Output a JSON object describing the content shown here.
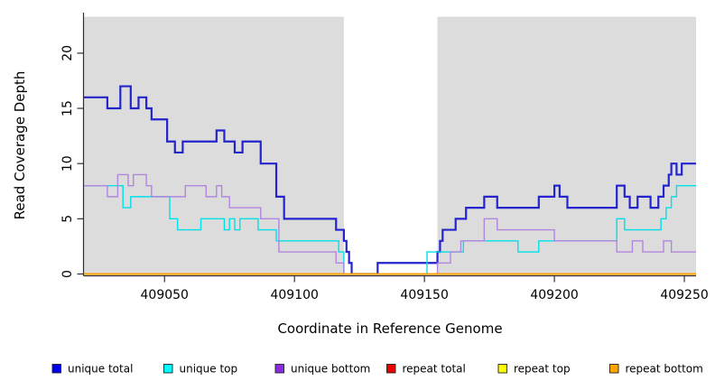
{
  "chart_data": {
    "type": "line",
    "subtype": "step",
    "title": "",
    "xlabel": "Coordinate in Reference Genome",
    "ylabel": "Read Coverage Depth",
    "xlim": [
      409019,
      409254.5
    ],
    "ylim": [
      0,
      23.3
    ],
    "x_ticks": [
      409050,
      409100,
      409150,
      409200,
      409250
    ],
    "x_tick_labels": [
      "409050",
      "409100",
      "409150",
      "409200",
      "409250"
    ],
    "y_ticks": [
      0,
      5,
      10,
      15,
      20
    ],
    "y_tick_labels": [
      "0",
      "5",
      "10",
      "15",
      "20"
    ],
    "grid": false,
    "legend_position": "bottom",
    "colors": {
      "plot_background": "#DCDCDC",
      "page_background": "#FFFFFF",
      "axis": "#2F2F2F",
      "mask_band": "#FFFFFF"
    },
    "mask_band": {
      "x_start": 409119,
      "x_end": 409155
    },
    "series": [
      {
        "name": "unique total",
        "line_color": "#2424CC",
        "legend_color": "#0000EE",
        "line_width": 2.2,
        "points": [
          [
            409019,
            16
          ],
          [
            409028,
            15
          ],
          [
            409033,
            17
          ],
          [
            409037,
            15
          ],
          [
            409040,
            16
          ],
          [
            409043,
            15
          ],
          [
            409045,
            14
          ],
          [
            409051,
            12
          ],
          [
            409054,
            11
          ],
          [
            409057,
            12
          ],
          [
            409070,
            13
          ],
          [
            409073,
            12
          ],
          [
            409077,
            11
          ],
          [
            409080,
            12
          ],
          [
            409087,
            10
          ],
          [
            409093,
            7
          ],
          [
            409096,
            5
          ],
          [
            409116,
            4
          ],
          [
            409119,
            3
          ],
          [
            409120,
            2
          ],
          [
            409121,
            1
          ],
          [
            409122,
            0
          ],
          [
            409132,
            1
          ],
          [
            409155,
            2
          ],
          [
            409156,
            3
          ],
          [
            409157,
            4
          ],
          [
            409162,
            5
          ],
          [
            409166,
            6
          ],
          [
            409173,
            7
          ],
          [
            409178,
            6
          ],
          [
            409194,
            7
          ],
          [
            409200,
            8
          ],
          [
            409202,
            7
          ],
          [
            409205,
            6
          ],
          [
            409224,
            8
          ],
          [
            409227,
            7
          ],
          [
            409229,
            6
          ],
          [
            409232,
            7
          ],
          [
            409237,
            6
          ],
          [
            409240,
            7
          ],
          [
            409242,
            8
          ],
          [
            409244,
            9
          ],
          [
            409245,
            10
          ],
          [
            409247,
            9
          ],
          [
            409249,
            10
          ],
          [
            409255,
            10
          ]
        ]
      },
      {
        "name": "unique top",
        "line_color": "#00E0E8",
        "legend_color": "#00FFFF",
        "line_width": 1.4,
        "points": [
          [
            409019,
            8
          ],
          [
            409034,
            6
          ],
          [
            409037,
            7
          ],
          [
            409052,
            5
          ],
          [
            409055,
            4
          ],
          [
            409064,
            5
          ],
          [
            409073,
            4
          ],
          [
            409075,
            5
          ],
          [
            409077,
            4
          ],
          [
            409079,
            5
          ],
          [
            409086,
            4
          ],
          [
            409093,
            3
          ],
          [
            409117,
            2
          ],
          [
            409119,
            0
          ],
          [
            409151,
            2
          ],
          [
            409165,
            3
          ],
          [
            409186,
            2
          ],
          [
            409194,
            3
          ],
          [
            409224,
            5
          ],
          [
            409227,
            4
          ],
          [
            409241,
            5
          ],
          [
            409243,
            6
          ],
          [
            409245,
            7
          ],
          [
            409247,
            8
          ],
          [
            409255,
            8
          ]
        ]
      },
      {
        "name": "unique bottom",
        "line_color": "#B285DE",
        "legend_color": "#8A2BE2",
        "line_width": 1.4,
        "points": [
          [
            409019,
            8
          ],
          [
            409028,
            7
          ],
          [
            409032,
            9
          ],
          [
            409036,
            8
          ],
          [
            409038,
            9
          ],
          [
            409043,
            8
          ],
          [
            409045,
            7
          ],
          [
            409058,
            8
          ],
          [
            409066,
            7
          ],
          [
            409070,
            8
          ],
          [
            409072,
            7
          ],
          [
            409075,
            6
          ],
          [
            409087,
            5
          ],
          [
            409094,
            2
          ],
          [
            409116,
            1
          ],
          [
            409119,
            0
          ],
          [
            409155,
            1
          ],
          [
            409160,
            2
          ],
          [
            409164,
            3
          ],
          [
            409173,
            5
          ],
          [
            409178,
            4
          ],
          [
            409200,
            3
          ],
          [
            409224,
            2
          ],
          [
            409230,
            3
          ],
          [
            409234,
            2
          ],
          [
            409242,
            3
          ],
          [
            409245,
            2
          ],
          [
            409255,
            2
          ]
        ]
      },
      {
        "name": "repeat total",
        "line_color": "#DD0000",
        "legend_color": "#EE0000",
        "line_width": 1.4,
        "points": [
          [
            409019,
            0
          ],
          [
            409255,
            0
          ]
        ]
      },
      {
        "name": "repeat top",
        "line_color": "#EEEE00",
        "legend_color": "#FFFF00",
        "line_width": 1.4,
        "points": [
          [
            409019,
            0
          ],
          [
            409255,
            0
          ]
        ]
      },
      {
        "name": "repeat bottom",
        "line_color": "#FFA000",
        "legend_color": "#FFA500",
        "line_width": 2,
        "points": [
          [
            409019,
            0
          ],
          [
            409255,
            0
          ]
        ]
      }
    ]
  }
}
